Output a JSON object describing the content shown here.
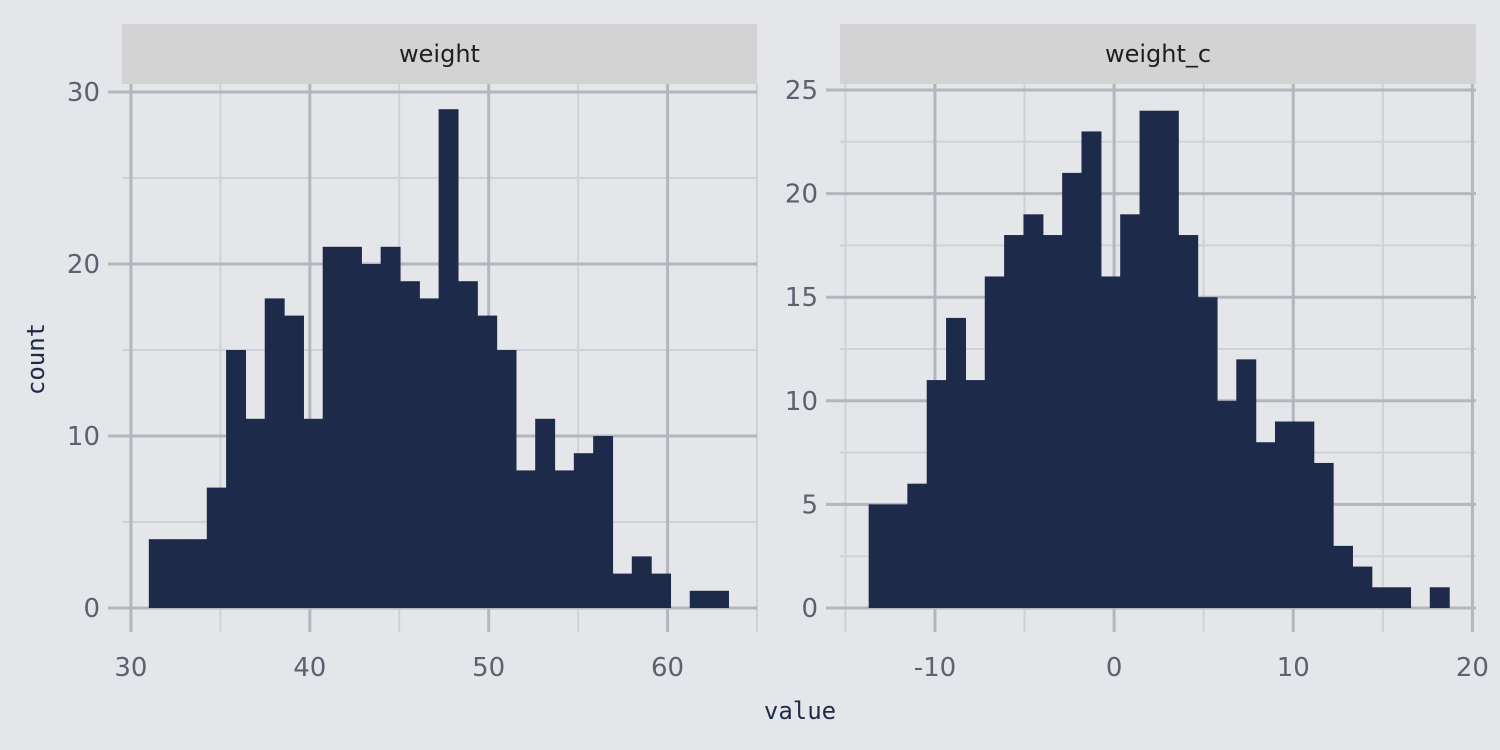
{
  "chart_data": [
    {
      "type": "bar",
      "title": "weight",
      "xlim": [
        29.5,
        65.0
      ],
      "ylim": [
        0,
        30
      ],
      "x_ticks": [
        30,
        40,
        50,
        60
      ],
      "y_ticks": [
        0,
        10,
        20,
        30
      ],
      "bin_edges": [
        31.0,
        32.08,
        33.16,
        34.24,
        35.32,
        36.4,
        37.48,
        38.56,
        39.64,
        40.72,
        41.8,
        42.88,
        43.96,
        45.04,
        46.12,
        47.2,
        48.28,
        49.36,
        50.44,
        51.52,
        52.6,
        53.68,
        54.76,
        55.84,
        56.92,
        58.0,
        59.08,
        60.16,
        61.24,
        62.32,
        63.4
      ],
      "values": [
        4,
        4,
        4,
        7,
        15,
        11,
        18,
        17,
        11,
        21,
        21,
        20,
        21,
        19,
        18,
        29,
        19,
        17,
        15,
        8,
        11,
        8,
        9,
        10,
        2,
        3,
        2,
        0,
        1,
        1
      ]
    },
    {
      "type": "bar",
      "title": "weight_c",
      "xlim": [
        -15.3,
        20.2
      ],
      "ylim": [
        0,
        25
      ],
      "x_ticks": [
        -10,
        0,
        10,
        20
      ],
      "y_ticks": [
        0,
        5,
        10,
        15,
        20,
        25
      ],
      "bin_edges": [
        -13.7,
        -12.62,
        -11.54,
        -10.46,
        -9.38,
        -8.3,
        -7.22,
        -6.14,
        -5.06,
        -3.98,
        -2.9,
        -1.82,
        -0.74,
        0.34,
        1.42,
        2.5,
        3.58,
        4.66,
        5.74,
        6.82,
        7.9,
        8.98,
        10.06,
        11.14,
        12.22,
        13.3,
        14.38,
        15.46,
        16.54,
        17.62,
        18.7
      ],
      "values": [
        5,
        5,
        6,
        11,
        14,
        11,
        16,
        18,
        19,
        18,
        21,
        23,
        16,
        19,
        24,
        24,
        18,
        15,
        10,
        12,
        8,
        9,
        9,
        7,
        3,
        2,
        1,
        1,
        0,
        1
      ]
    }
  ],
  "axes": {
    "xlabel": "value",
    "ylabel": "count"
  },
  "colors": {
    "bar_fill": "#1d2a4a",
    "panel_background": "#e5e6ea",
    "strip_background": "#d3d3d3",
    "grid_major": "#b4b6be",
    "grid_minor": "#cfd1d7"
  }
}
